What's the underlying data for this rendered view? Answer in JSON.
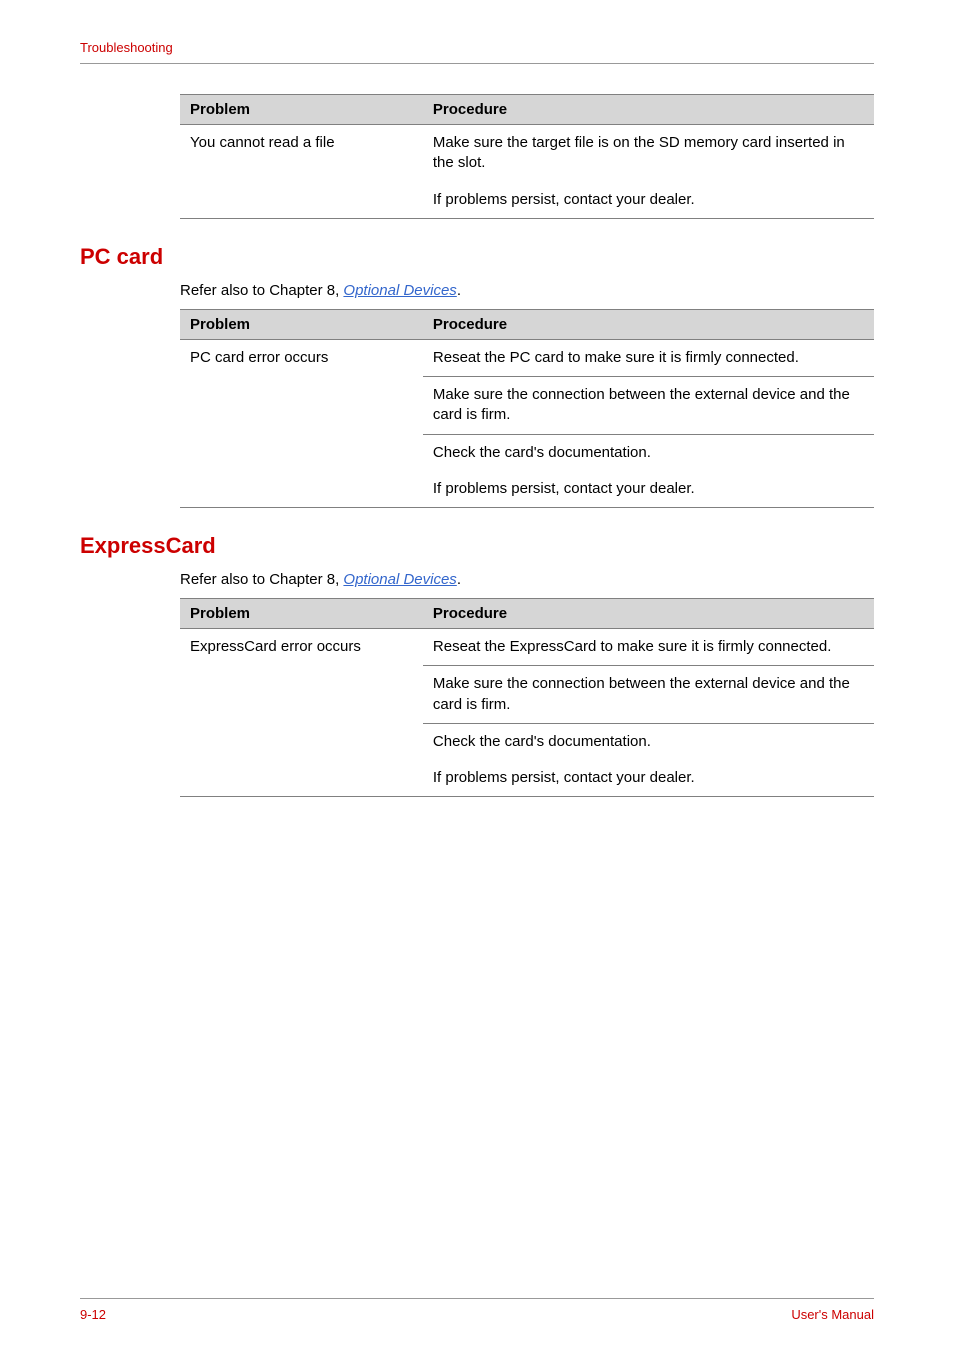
{
  "header": {
    "title": "Troubleshooting"
  },
  "footer": {
    "page": "9-12",
    "manual": "User's Manual"
  },
  "colors": {
    "accent": "#cc0000",
    "link": "#3366cc",
    "th_bg": "#d6d6d6",
    "border": "#808080",
    "rule": "#999999"
  },
  "tables": {
    "topTable": {
      "headers": {
        "problem": "Problem",
        "procedure": "Procedure"
      },
      "rows": [
        {
          "problem": "You cannot read a file",
          "cells": [
            "Make sure the target file is on the SD memory card inserted in the slot.",
            "If problems persist, contact your dealer."
          ]
        }
      ]
    },
    "pcCard": {
      "title": "PC card",
      "intro_prefix": "Refer also to Chapter 8, ",
      "intro_link": "Optional Devices",
      "intro_suffix": ".",
      "headers": {
        "problem": "Problem",
        "procedure": "Procedure"
      },
      "rows": [
        {
          "problem": "PC card error occurs",
          "cells": [
            "Reseat the PC card to make sure it is firmly connected.",
            "Make sure the connection between the external device and the card is firm.",
            "Check the card's documentation.",
            "If problems persist, contact your dealer."
          ]
        }
      ]
    },
    "expressCard": {
      "title": "ExpressCard",
      "intro_prefix": "Refer also to Chapter 8, ",
      "intro_link": "Optional Devices",
      "intro_suffix": ".",
      "headers": {
        "problem": "Problem",
        "procedure": "Procedure"
      },
      "rows": [
        {
          "problem": "ExpressCard error occurs",
          "cells": [
            "Reseat the ExpressCard to make sure it is firmly connected.",
            "Make sure the connection between the external device and the card is firm.",
            "Check the card's documentation.",
            "If problems persist, contact your dealer."
          ]
        }
      ]
    }
  }
}
